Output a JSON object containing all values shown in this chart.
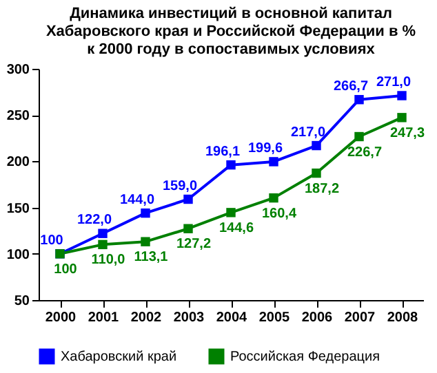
{
  "chart_data": {
    "type": "line",
    "title": "Динамика инвестиций в основной капитал Хабаровского края и Российской Федерации в % к 2000 году в сопоставимых условиях",
    "categories": [
      "2000",
      "2001",
      "2002",
      "2003",
      "2004",
      "2005",
      "2006",
      "2007",
      "2008"
    ],
    "series": [
      {
        "name": "Хабаровский край",
        "color": "#0000ff",
        "values": [
          100,
          122.0,
          144.0,
          159.0,
          196.1,
          199.6,
          217.0,
          266.7,
          271.0
        ],
        "value_labels": [
          "100",
          "122,0",
          "144,0",
          "159,0",
          "196,1",
          "199,6",
          "217,0",
          "266,7",
          "271,0"
        ]
      },
      {
        "name": "Российская Федерация",
        "color": "#008000",
        "values": [
          100,
          110.0,
          113.1,
          127.2,
          144.6,
          160.4,
          187.2,
          226.7,
          247.3
        ],
        "value_labels": [
          "100",
          "110,0",
          "113,1",
          "127,2",
          "144,6",
          "160,4",
          "187,2",
          "226,7",
          "247,3"
        ]
      }
    ],
    "ylim": [
      50,
      300
    ],
    "yticks": [
      50,
      100,
      150,
      200,
      250,
      300
    ],
    "grid": false,
    "legend": "bottom",
    "marker": "square",
    "line_style": "solid"
  }
}
